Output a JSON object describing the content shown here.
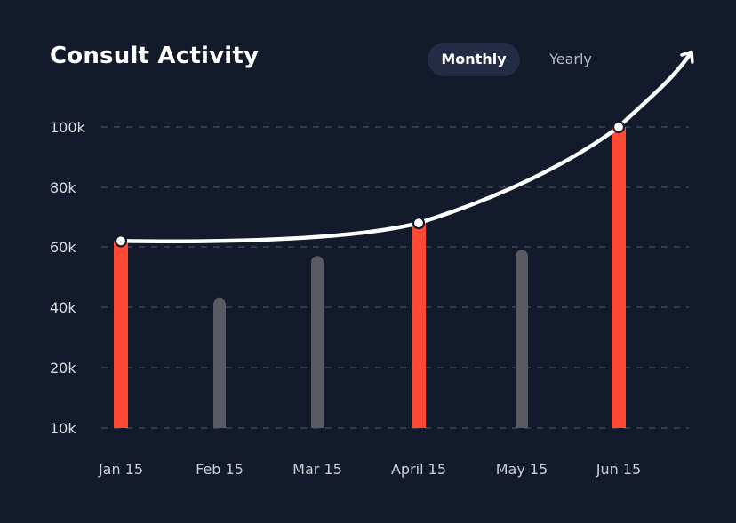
{
  "chart_data": {
    "type": "bar",
    "title": "Consult Activity",
    "toggle": {
      "options": [
        "Monthly",
        "Yearly"
      ],
      "selected": "Monthly"
    },
    "categories": [
      "Jan 15",
      "Feb 15",
      "Mar 15",
      "April 15",
      "May 15",
      "Jun 15"
    ],
    "values": [
      62,
      43,
      57,
      68,
      59,
      100
    ],
    "highlighted": [
      true,
      false,
      false,
      true,
      false,
      true
    ],
    "y_tick_values": [
      10,
      20,
      40,
      60,
      80,
      100
    ],
    "y_tick_labels": [
      "10k",
      "20k",
      "40k",
      "60k",
      "80k",
      "100k"
    ],
    "unit": "k",
    "trend_line": {
      "points": [
        62,
        68,
        100
      ]
    },
    "colors": {
      "background": "#131a2c",
      "highlight_bar": "#ff4a33",
      "muted_bar": "#5a5a62",
      "trend_line": "#ffffff",
      "grid": "#3d4458"
    }
  }
}
